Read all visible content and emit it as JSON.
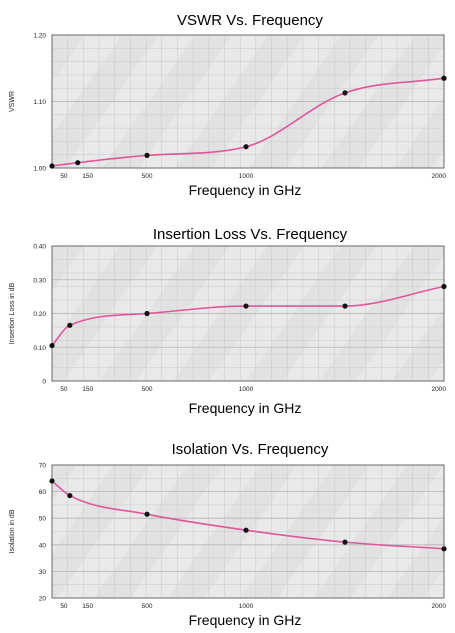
{
  "chart_data": [
    {
      "type": "line",
      "title": "VSWR Vs. Frequency",
      "xlabel": "Frequency in GHz",
      "ylabel": "VSWR",
      "xlim": [
        20,
        2000
      ],
      "ylim": [
        1.0,
        1.2
      ],
      "x_ticks": [
        50,
        150,
        500,
        1000,
        2000
      ],
      "x_tick_labels": [
        "50",
        "150",
        "500",
        "1000",
        "2000"
      ],
      "y_ticks": [
        1.0,
        1.1,
        1.2
      ],
      "y_tick_labels": [
        "1.00",
        "1.10",
        "1.20"
      ],
      "grid": true,
      "color": "#e0559e",
      "series": [
        {
          "x": [
            20,
            150,
            500,
            1000,
            1500,
            2000
          ],
          "y": [
            1.003,
            1.008,
            1.019,
            1.032,
            1.113,
            1.135
          ]
        }
      ]
    },
    {
      "type": "line",
      "title": "Insertion Loss Vs. Frequency",
      "xlabel": "Frequency in GHz",
      "ylabel": "Insertion Loss in dB",
      "xlim": [
        20,
        2000
      ],
      "ylim": [
        0,
        0.4
      ],
      "x_ticks": [
        50,
        150,
        500,
        1000,
        2000
      ],
      "x_tick_labels": [
        "50",
        "150",
        "500",
        "1000",
        "2000"
      ],
      "y_ticks": [
        0,
        0.1,
        0.2,
        0.3,
        0.4
      ],
      "y_tick_labels": [
        "0",
        "0.10",
        "0.20",
        "0.30",
        "0.40"
      ],
      "grid": true,
      "color": "#e0559e",
      "series": [
        {
          "x": [
            20,
            110,
            500,
            1000,
            1500,
            2000
          ],
          "y": [
            0.105,
            0.165,
            0.2,
            0.222,
            0.222,
            0.28
          ]
        }
      ]
    },
    {
      "type": "line",
      "title": "Isolation Vs. Frequency",
      "xlabel": "Frequency in GHz",
      "ylabel": "Isolation in dB",
      "xlim": [
        20,
        2000
      ],
      "ylim": [
        20,
        70
      ],
      "x_ticks": [
        50,
        150,
        500,
        1000,
        2000
      ],
      "x_tick_labels": [
        "50",
        "150",
        "500",
        "1000",
        "2000"
      ],
      "y_ticks": [
        20,
        30,
        40,
        50,
        60,
        70
      ],
      "y_tick_labels": [
        "20",
        "30",
        "40",
        "50",
        "60",
        "70"
      ],
      "grid": true,
      "color": "#e0559e",
      "series": [
        {
          "x": [
            20,
            110,
            500,
            1000,
            1500,
            2000
          ],
          "y": [
            64,
            58.5,
            51.5,
            45.5,
            41,
            38.5
          ]
        }
      ]
    }
  ]
}
